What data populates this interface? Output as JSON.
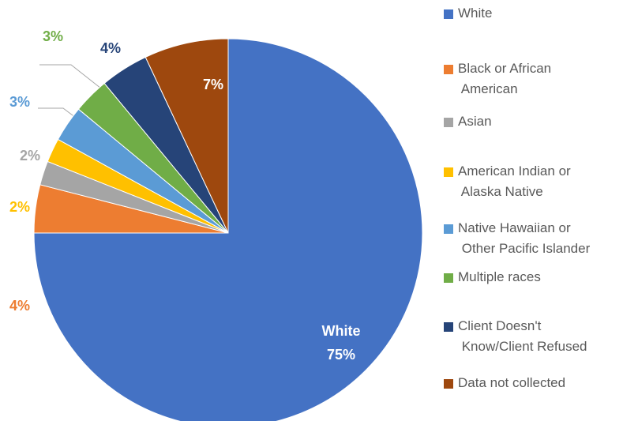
{
  "chart_data": {
    "type": "pie",
    "categories": [
      "White",
      "Black or African American",
      "Asian",
      "American Indian or Alaska Native",
      "Native Hawaiian or Other Pacific Islander",
      "Multiple races",
      "Client Doesn't Know/Client Refused",
      "Data not collected"
    ],
    "values": [
      75,
      4,
      2,
      2,
      3,
      3,
      4,
      7
    ],
    "value_labels": [
      "75%",
      "4%",
      "2%",
      "2%",
      "3%",
      "3%",
      "4%",
      "7%"
    ],
    "colors": [
      "#4472c4",
      "#ed7d31",
      "#a5a5a5",
      "#ffc000",
      "#5b9bd5",
      "#70ad47",
      "#264478",
      "#9e480e"
    ],
    "legend": "right"
  }
}
